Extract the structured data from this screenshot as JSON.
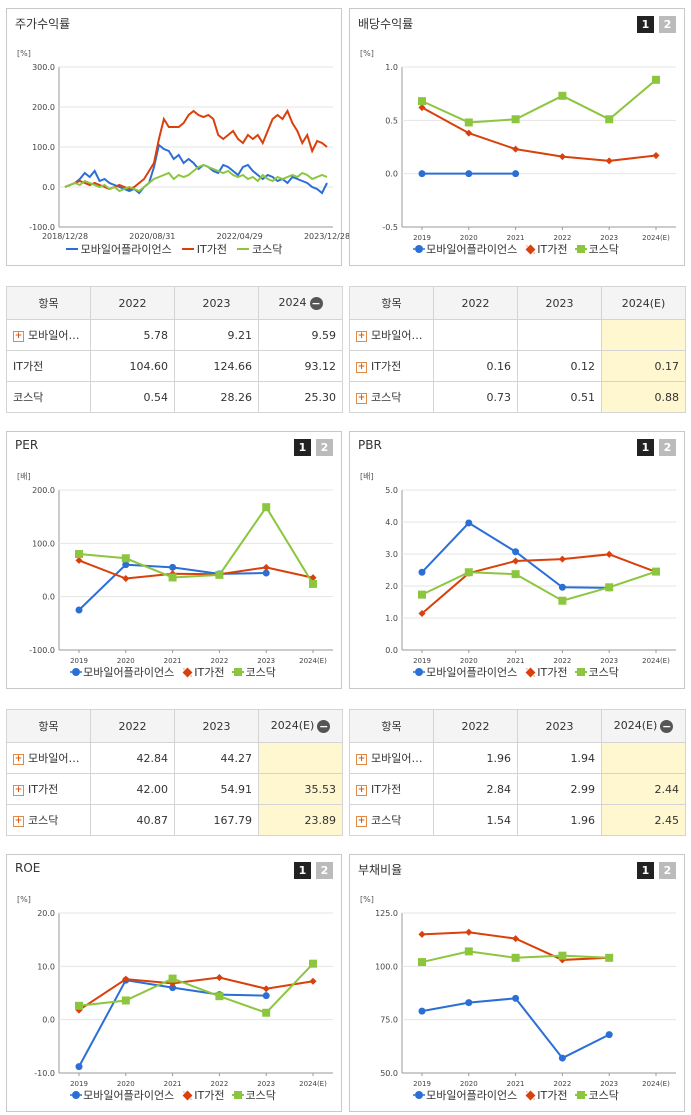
{
  "colors": {
    "s1": "#2b6fd6",
    "s2": "#d9400b",
    "s3": "#8cc63e"
  },
  "legend": [
    "모바일어플라이언스",
    "IT가전",
    "코스닥"
  ],
  "pager": [
    "1",
    "2"
  ],
  "charts": [
    {
      "id": "price",
      "title": "주가수익률",
      "type": "line",
      "unit": "[%]",
      "ylim": [
        -100,
        300
      ],
      "yticks": [
        "300.0",
        "200.0",
        "100.0",
        "0.0",
        "-100.0"
      ],
      "xticks": [
        "2018/12/28",
        "2020/08/31",
        "2022/04/29",
        "2023/12/28"
      ],
      "pager": false,
      "chart_data": {
        "type": "line",
        "series": [
          {
            "name": "모바일어플라이언스",
            "values": [
              0,
              5,
              10,
              20,
              35,
              25,
              40,
              15,
              20,
              10,
              5,
              0,
              -5,
              -10,
              -5,
              -15,
              0,
              10,
              50,
              105,
              95,
              90,
              70,
              80,
              60,
              70,
              60,
              45,
              55,
              50,
              40,
              35,
              55,
              50,
              40,
              30,
              50,
              55,
              40,
              30,
              20,
              30,
              25,
              15,
              20,
              10,
              25,
              20,
              15,
              10,
              0,
              -5,
              -15,
              10
            ]
          },
          {
            "name": "IT가전",
            "values": [
              0,
              5,
              10,
              15,
              10,
              5,
              10,
              5,
              0,
              -5,
              0,
              5,
              0,
              -5,
              0,
              10,
              20,
              40,
              60,
              120,
              170,
              150,
              150,
              150,
              160,
              180,
              190,
              180,
              175,
              180,
              170,
              130,
              120,
              130,
              140,
              120,
              110,
              130,
              120,
              130,
              110,
              140,
              170,
              180,
              170,
              190,
              160,
              140,
              110,
              130,
              90,
              115,
              110,
              100
            ]
          },
          {
            "name": "코스닥",
            "values": [
              0,
              5,
              10,
              5,
              15,
              10,
              5,
              0,
              5,
              -5,
              0,
              -10,
              -5,
              0,
              -5,
              -10,
              0,
              10,
              20,
              25,
              30,
              35,
              20,
              30,
              25,
              30,
              40,
              50,
              55,
              50,
              45,
              40,
              35,
              40,
              30,
              25,
              30,
              20,
              25,
              15,
              30,
              20,
              15,
              25,
              20,
              25,
              30,
              25,
              35,
              30,
              20,
              25,
              30,
              25
            ]
          }
        ],
        "xlabels": [
          "2018/12/28",
          "2020/08/31",
          "2022/04/29",
          "2023/12/28"
        ],
        "ylim": [
          -100,
          300
        ]
      }
    },
    {
      "id": "dividend",
      "title": "배당수익률",
      "type": "line",
      "unit": "[%]",
      "ylim": [
        -0.5,
        1.0
      ],
      "yticks": [
        "1.0",
        "0.5",
        "0.0",
        "-0.5"
      ],
      "pager": true,
      "chart_data": {
        "type": "line",
        "categories": [
          "2019",
          "2020",
          "2021",
          "2022",
          "2023",
          "2024(E)"
        ],
        "series": [
          {
            "name": "모바일어플라이언스",
            "values": [
              0.0,
              0.0,
              0.0,
              null,
              null,
              null
            ]
          },
          {
            "name": "IT가전",
            "values": [
              0.62,
              0.38,
              0.23,
              0.16,
              0.12,
              0.17
            ]
          },
          {
            "name": "코스닥",
            "values": [
              0.68,
              0.48,
              0.51,
              0.73,
              0.51,
              0.88
            ]
          }
        ],
        "ylim": [
          -0.5,
          1.0
        ]
      }
    },
    {
      "id": "per",
      "title": "PER",
      "type": "line",
      "unit": "[배]",
      "ylim": [
        -100,
        200
      ],
      "yticks": [
        "200.0",
        "100.0",
        "0.0",
        "-100.0"
      ],
      "pager": true,
      "chart_data": {
        "type": "line",
        "categories": [
          "2019",
          "2020",
          "2021",
          "2022",
          "2023",
          "2024(E)"
        ],
        "series": [
          {
            "name": "모바일어플라이언스",
            "values": [
              -25,
              60,
              55,
              42.84,
              44.27,
              null
            ]
          },
          {
            "name": "IT가전",
            "values": [
              68,
              34,
              43,
              42.0,
              54.91,
              35.53
            ]
          },
          {
            "name": "코스닥",
            "values": [
              80,
              72,
              36,
              40.87,
              167.79,
              23.89
            ]
          }
        ],
        "ylim": [
          -100,
          200
        ]
      }
    },
    {
      "id": "pbr",
      "title": "PBR",
      "type": "line",
      "unit": "[배]",
      "ylim": [
        0,
        5
      ],
      "yticks": [
        "5.0",
        "4.0",
        "3.0",
        "2.0",
        "1.0",
        "0.0"
      ],
      "pager": true,
      "chart_data": {
        "type": "line",
        "categories": [
          "2019",
          "2020",
          "2021",
          "2022",
          "2023",
          "2024(E)"
        ],
        "series": [
          {
            "name": "모바일어플라이언스",
            "values": [
              2.43,
              3.97,
              3.07,
              1.96,
              1.94,
              null
            ]
          },
          {
            "name": "IT가전",
            "values": [
              1.14,
              2.4,
              2.78,
              2.84,
              2.99,
              2.44
            ]
          },
          {
            "name": "코스닥",
            "values": [
              1.73,
              2.43,
              2.37,
              1.54,
              1.96,
              2.45
            ]
          }
        ],
        "ylim": [
          0,
          5
        ]
      }
    },
    {
      "id": "roe",
      "title": "ROE",
      "type": "line",
      "unit": "[%]",
      "ylim": [
        -10,
        20
      ],
      "yticks": [
        "20.0",
        "10.0",
        "0.0",
        "-10.0"
      ],
      "pager": true,
      "chart_data": {
        "type": "line",
        "categories": [
          "2019",
          "2020",
          "2021",
          "2022",
          "2023",
          "2024(E)"
        ],
        "series": [
          {
            "name": "모바일어플라이언스",
            "values": [
              -8.8,
              7.4,
              6.0,
              4.7,
              4.5,
              null
            ]
          },
          {
            "name": "IT가전",
            "values": [
              1.8,
              7.6,
              6.8,
              7.9,
              5.8,
              7.2
            ]
          },
          {
            "name": "코스닥",
            "values": [
              2.6,
              3.6,
              7.7,
              4.4,
              1.3,
              10.5
            ]
          }
        ],
        "ylim": [
          -10,
          20
        ]
      }
    },
    {
      "id": "debt",
      "title": "부채비율",
      "type": "line",
      "unit": "[%]",
      "ylim": [
        50,
        125
      ],
      "yticks": [
        "125.0",
        "100.0",
        "75.0",
        "50.0"
      ],
      "pager": true,
      "chart_data": {
        "type": "line",
        "categories": [
          "2019",
          "2020",
          "2021",
          "2022",
          "2023",
          "2024(E)"
        ],
        "series": [
          {
            "name": "모바일어플라이언스",
            "values": [
              79,
              83,
              85,
              57,
              68,
              null
            ]
          },
          {
            "name": "IT가전",
            "values": [
              115,
              116,
              113,
              103,
              104,
              null
            ]
          },
          {
            "name": "코스닥",
            "values": [
              102,
              107,
              104,
              105,
              104,
              null
            ]
          }
        ],
        "ylim": [
          50,
          125
        ]
      }
    }
  ],
  "tables": [
    {
      "id": "t_price",
      "h": [
        "항목",
        "2022",
        "2023",
        "2024"
      ],
      "minus": true,
      "rows": [
        [
          "모바일어…",
          "5.78",
          "9.21",
          "9.59"
        ],
        [
          "IT가전",
          "104.60",
          "124.66",
          "93.12"
        ],
        [
          "코스닥",
          "0.54",
          "28.26",
          "25.30"
        ]
      ],
      "plus": [
        true,
        false,
        false
      ],
      "hl": false
    },
    {
      "id": "t_div",
      "h": [
        "항목",
        "2022",
        "2023",
        "2024(E)"
      ],
      "minus": false,
      "rows": [
        [
          "모바일어…",
          "",
          "",
          ""
        ],
        [
          "IT가전",
          "0.16",
          "0.12",
          "0.17"
        ],
        [
          "코스닥",
          "0.73",
          "0.51",
          "0.88"
        ]
      ],
      "plus": [
        true,
        true,
        true
      ],
      "hl": true
    },
    {
      "id": "t_per",
      "h": [
        "항목",
        "2022",
        "2023",
        "2024(E)"
      ],
      "minus": true,
      "rows": [
        [
          "모바일어…",
          "42.84",
          "44.27",
          ""
        ],
        [
          "IT가전",
          "42.00",
          "54.91",
          "35.53"
        ],
        [
          "코스닥",
          "40.87",
          "167.79",
          "23.89"
        ]
      ],
      "plus": [
        true,
        true,
        true
      ],
      "hl": true
    },
    {
      "id": "t_pbr",
      "h": [
        "항목",
        "2022",
        "2023",
        "2024(E)"
      ],
      "minus": true,
      "rows": [
        [
          "모바일어…",
          "1.96",
          "1.94",
          ""
        ],
        [
          "IT가전",
          "2.84",
          "2.99",
          "2.44"
        ],
        [
          "코스닥",
          "1.54",
          "1.96",
          "2.45"
        ]
      ],
      "plus": [
        true,
        true,
        true
      ],
      "hl": true
    }
  ]
}
